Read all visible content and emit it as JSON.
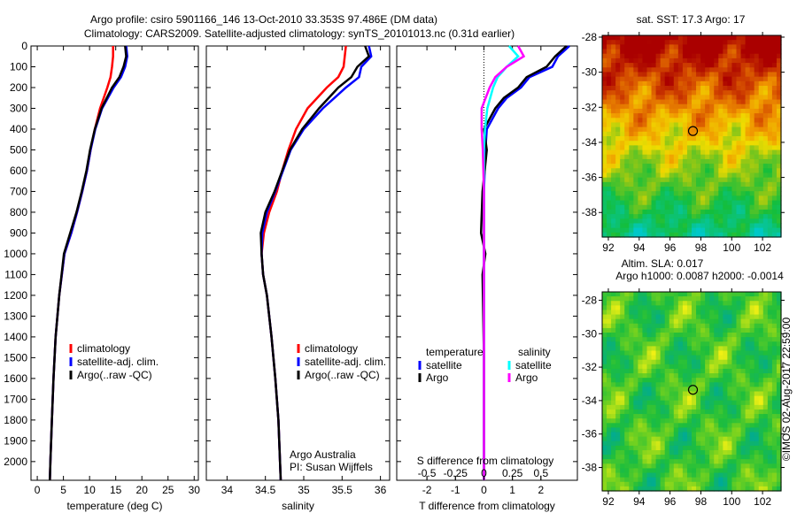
{
  "title": {
    "line1": "Argo profile: csiro 5901166_146 13-Oct-2010 33.353S 97.486E (DM data)",
    "line2": "Climatology: CARS2009. Satellite-adjusted climatology: synTS_20101013.nc (0.31d earlier)"
  },
  "copyright": "©IMOS 02-Aug-2017 22:59:00",
  "colors": {
    "climatology": "#ff0000",
    "satellite": "#0000ff",
    "argo": "#000000",
    "sal_satellite": "#00ffff",
    "sal_argo": "#ff00ff"
  },
  "chart_data": [
    {
      "type": "line",
      "id": "temperature",
      "xlabel": "temperature (deg C)",
      "ylabel": "",
      "xlim": [
        -1.2,
        30.8
      ],
      "ylim": [
        2090,
        0
      ],
      "xticks": [
        0,
        5,
        10,
        15,
        20,
        25,
        30
      ],
      "yticks": [
        0,
        100,
        200,
        300,
        400,
        500,
        600,
        700,
        800,
        900,
        1000,
        1100,
        1200,
        1300,
        1400,
        1500,
        1600,
        1700,
        1800,
        1900,
        2000
      ],
      "legend": [
        "climatology",
        "satellite-adj. clim.",
        "Argo(..raw -QC)"
      ],
      "series": [
        {
          "name": "climatology",
          "color": "#ff0000",
          "depth": [
            0,
            50,
            100,
            150,
            200,
            300,
            400,
            500,
            600,
            700,
            800,
            900,
            1000,
            1200,
            1400,
            1600,
            1800,
            2000,
            2090
          ],
          "values": [
            14.5,
            14.5,
            14.3,
            14.0,
            13.4,
            12.0,
            11.0,
            10.2,
            9.5,
            8.6,
            7.6,
            6.5,
            5.2,
            4.2,
            3.5,
            3.1,
            2.8,
            2.5,
            2.4
          ]
        },
        {
          "name": "satellite-adj. clim.",
          "color": "#0000ff",
          "depth": [
            0,
            50,
            100,
            150,
            200,
            300,
            400,
            500,
            600,
            700,
            800,
            900,
            1000,
            1200,
            1400,
            1600,
            1800,
            2000,
            2090
          ],
          "values": [
            17.0,
            17.2,
            16.8,
            16.0,
            14.6,
            12.4,
            11.1,
            10.2,
            9.5,
            8.6,
            7.6,
            6.5,
            5.2,
            4.2,
            3.5,
            3.1,
            2.8,
            2.5,
            2.4
          ]
        },
        {
          "name": "Argo(..raw -QC)",
          "color": "#000000",
          "depth": [
            0,
            50,
            100,
            150,
            200,
            300,
            400,
            500,
            600,
            700,
            800,
            900,
            1000,
            1200,
            1400,
            1600,
            1800,
            2000,
            2090
          ],
          "values": [
            16.8,
            17.0,
            16.5,
            15.7,
            14.3,
            12.3,
            11.0,
            10.1,
            9.4,
            8.5,
            7.5,
            6.3,
            5.1,
            4.2,
            3.5,
            3.1,
            2.8,
            2.5,
            2.4
          ]
        }
      ]
    },
    {
      "type": "line",
      "id": "salinity",
      "xlabel": "salinity",
      "xlim": [
        33.73,
        36.12
      ],
      "ylim": [
        2090,
        0
      ],
      "xticks": [
        34,
        34.5,
        35,
        35.5,
        36
      ],
      "legend": [
        "climatology",
        "satellite-adj. clim.",
        "Argo(..raw -QC)"
      ],
      "annotation": [
        "Argo Australia",
        "PI: Susan Wijffels"
      ],
      "series": [
        {
          "name": "climatology",
          "color": "#ff0000",
          "depth": [
            0,
            100,
            150,
            200,
            300,
            400,
            500,
            600,
            700,
            800,
            900,
            1000,
            1100,
            1200,
            1400,
            1600,
            1800,
            2090
          ],
          "values": [
            35.55,
            35.52,
            35.45,
            35.3,
            35.05,
            34.9,
            34.8,
            34.72,
            34.65,
            34.55,
            34.48,
            34.45,
            34.47,
            34.52,
            34.58,
            34.63,
            34.67,
            34.7
          ]
        },
        {
          "name": "satellite-adj. clim.",
          "color": "#0000ff",
          "depth": [
            0,
            50,
            100,
            150,
            200,
            300,
            400,
            500,
            600,
            700,
            800,
            900,
            1000,
            1100,
            1200,
            1400,
            1600,
            1800,
            2090
          ],
          "values": [
            35.85,
            35.88,
            35.75,
            35.72,
            35.55,
            35.25,
            35.0,
            34.83,
            34.73,
            34.63,
            34.52,
            34.46,
            34.45,
            34.47,
            34.52,
            34.58,
            34.63,
            34.67,
            34.7
          ]
        },
        {
          "name": "Argo(..raw -QC)",
          "color": "#000000",
          "depth": [
            0,
            50,
            100,
            150,
            200,
            300,
            400,
            500,
            600,
            700,
            800,
            900,
            1000,
            1100,
            1200,
            1400,
            1600,
            1800,
            2090
          ],
          "values": [
            35.8,
            35.85,
            35.7,
            35.62,
            35.45,
            35.2,
            34.98,
            34.82,
            34.72,
            34.62,
            34.5,
            34.44,
            34.45,
            34.47,
            34.52,
            34.58,
            34.63,
            34.67,
            34.7
          ]
        }
      ]
    },
    {
      "type": "line",
      "id": "difference",
      "xlabel": "T difference from climatology",
      "xlabel_top": "S difference from climatology",
      "xlim": [
        -3.06,
        3.28
      ],
      "ylim": [
        2090,
        0
      ],
      "xticks": [
        -2,
        -1,
        0,
        1,
        2
      ],
      "s_ticks": [
        -0.5,
        -0.25,
        0,
        0.25,
        0.5
      ],
      "s_tick_labels": [
        "-0.5",
        "-0.25",
        "0",
        "0.25",
        "0.5"
      ],
      "legend": {
        "temperature": "temperature",
        "salinity": "salinity",
        "items": [
          "satellite",
          "Argo",
          "satellite",
          "Argo"
        ]
      },
      "series": [
        {
          "name": "T satellite",
          "color": "#0000ff",
          "scale": "T",
          "depth": [
            0,
            50,
            100,
            150,
            200,
            250,
            300,
            400,
            500,
            700,
            900,
            1100,
            1500,
            2090
          ],
          "values": [
            3.0,
            2.6,
            2.4,
            1.6,
            1.3,
            0.8,
            0.5,
            0.1,
            0.05,
            0,
            0,
            0,
            0,
            0
          ]
        },
        {
          "name": "T Argo",
          "color": "#000000",
          "scale": "T",
          "depth": [
            0,
            50,
            100,
            150,
            200,
            250,
            300,
            400,
            500,
            700,
            900,
            1000,
            1100,
            1500,
            2090
          ],
          "values": [
            2.9,
            2.5,
            2.2,
            1.5,
            1.2,
            0.7,
            0.4,
            0.0,
            0.1,
            -0.05,
            -0.1,
            0.05,
            -0.05,
            0,
            0
          ]
        },
        {
          "name": "S satellite",
          "color": "#00ffff",
          "scale": "S",
          "depth": [
            0,
            50,
            100,
            150,
            200,
            300,
            400,
            500,
            700,
            900,
            1100,
            1500,
            2090
          ],
          "values": [
            0.22,
            0.3,
            0.2,
            0.12,
            0.08,
            0.03,
            0.01,
            0,
            0,
            0,
            0,
            0,
            0
          ]
        },
        {
          "name": "S Argo",
          "color": "#ff00ff",
          "scale": "S",
          "depth": [
            0,
            50,
            100,
            150,
            200,
            300,
            400,
            500,
            700,
            900,
            1100,
            1500,
            2090
          ],
          "values": [
            0.3,
            0.35,
            0.2,
            0.1,
            0.05,
            -0.02,
            -0.02,
            -0.01,
            0,
            0,
            0,
            0,
            0
          ]
        }
      ]
    },
    {
      "type": "heatmap",
      "id": "sst-map",
      "title": "sat. SST: 17.3 Argo: 17",
      "xlim": [
        91.6,
        103.2
      ],
      "ylim": [
        -39.4,
        -27.9
      ],
      "xticks": [
        92,
        94,
        96,
        98,
        100,
        102
      ],
      "yticks": [
        -28,
        -30,
        -32,
        -34,
        -36,
        -38
      ],
      "marker": {
        "lon": 97.486,
        "lat": -33.353
      }
    },
    {
      "type": "heatmap",
      "id": "sla-map",
      "title": [
        "Altim. SLA: 0.017",
        "Argo h1000: 0.0087 h2000: -0.0014"
      ],
      "xlim": [
        91.6,
        103.2
      ],
      "ylim": [
        -39.4,
        -27.5
      ],
      "xticks": [
        92,
        94,
        96,
        98,
        100,
        102
      ],
      "yticks": [
        -28,
        -30,
        -32,
        -34,
        -36,
        -38
      ],
      "marker": {
        "lon": 97.486,
        "lat": -33.353
      }
    }
  ]
}
